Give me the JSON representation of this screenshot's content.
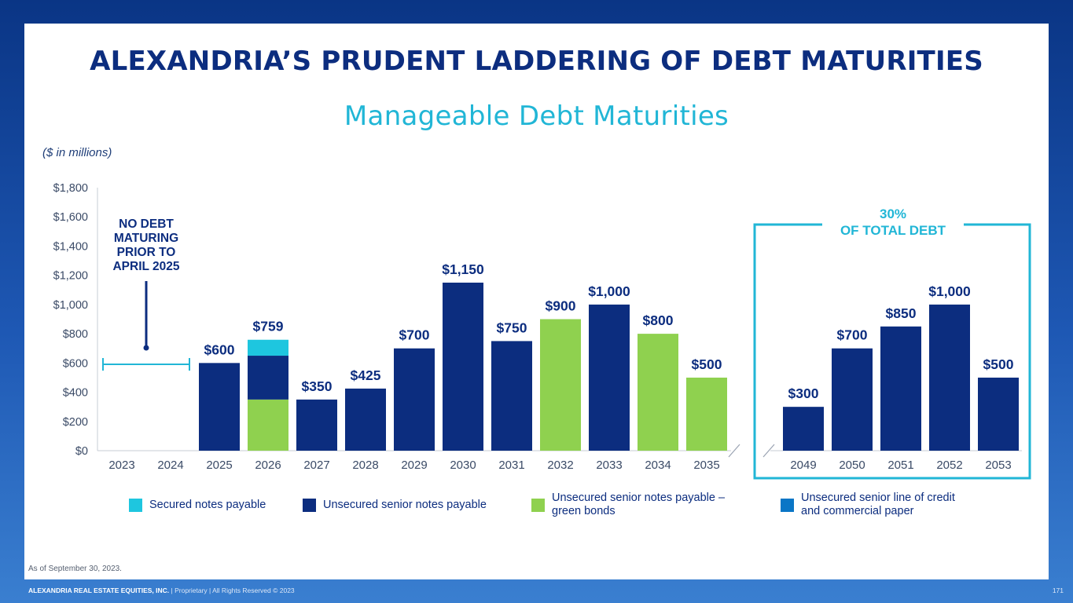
{
  "title": "ALEXANDRIA’S PRUDENT LADDERING OF DEBT MATURITIES",
  "subtitle": "Manageable Debt Maturities",
  "units_note": "($ in millions)",
  "callout": [
    "NO DEBT",
    "MATURING",
    "PRIOR TO",
    "APRIL 2025"
  ],
  "box_label": [
    "30%",
    "OF TOTAL DEBT"
  ],
  "footnote": "As of September 30, 2023.",
  "footer": {
    "company": "ALEXANDRIA REAL ESTATE EQUITIES, INC.",
    "rest": " | Proprietary | All Rights Reserved © 2023",
    "page": "171"
  },
  "colors": {
    "secured": "#1ec6df",
    "unsecured": "#0c2d7f",
    "green": "#8fd14f",
    "line_of_credit": "#0a76c6",
    "accent": "#21b6d6"
  },
  "legend": [
    {
      "label": "Secured notes payable",
      "color_key": "secured"
    },
    {
      "label": "Unsecured senior notes payable",
      "color_key": "unsecured"
    },
    {
      "label": "Unsecured senior notes payable –\ngreen bonds",
      "color_key": "green"
    },
    {
      "label": "Unsecured senior line of credit\nand commercial paper",
      "color_key": "line_of_credit"
    }
  ],
  "chart_data": {
    "type": "bar",
    "stacked": true,
    "ylim": [
      0,
      1800
    ],
    "y_ticks": [
      "$0",
      "$200",
      "$400",
      "$600",
      "$800",
      "$1,000",
      "$1,200",
      "$1,400",
      "$1,600",
      "$1,800"
    ],
    "y_tick_values": [
      0,
      200,
      400,
      600,
      800,
      1000,
      1200,
      1400,
      1600,
      1800
    ],
    "categories": [
      "2023",
      "2024",
      "2025",
      "2026",
      "2027",
      "2028",
      "2029",
      "2030",
      "2031",
      "2032",
      "2033",
      "2034",
      "2035",
      "2049",
      "2050",
      "2051",
      "2052",
      "2053"
    ],
    "series": [
      {
        "name": "Secured notes payable",
        "color_key": "secured",
        "values": [
          0,
          0,
          0,
          109,
          0,
          0,
          0,
          0,
          0,
          0,
          0,
          0,
          0,
          0,
          0,
          0,
          0,
          0
        ]
      },
      {
        "name": "Unsecured senior notes payable",
        "color_key": "unsecured",
        "values": [
          0,
          0,
          600,
          300,
          350,
          425,
          700,
          1150,
          750,
          0,
          1000,
          0,
          0,
          300,
          700,
          850,
          1000,
          500
        ]
      },
      {
        "name": "Unsecured senior notes payable – green bonds",
        "color_key": "green",
        "values": [
          0,
          0,
          0,
          350,
          0,
          0,
          0,
          0,
          0,
          900,
          0,
          800,
          500,
          0,
          0,
          0,
          0,
          0
        ]
      },
      {
        "name": "Unsecured senior line of credit and commercial paper",
        "color_key": "line_of_credit",
        "values": [
          0,
          0,
          0,
          0,
          0,
          0,
          0,
          0,
          0,
          0,
          0,
          0,
          0,
          0,
          0,
          0,
          0,
          0
        ]
      }
    ],
    "data_labels": [
      "",
      "",
      "$600",
      "$759",
      "$350",
      "$425",
      "$700",
      "$1,150",
      "$750",
      "$900",
      "$1,000",
      "$800",
      "$500",
      "$300",
      "$700",
      "$850",
      "$1,000",
      "$500"
    ],
    "axis_break_after": "2035",
    "grid": false,
    "legend_position": "bottom"
  }
}
